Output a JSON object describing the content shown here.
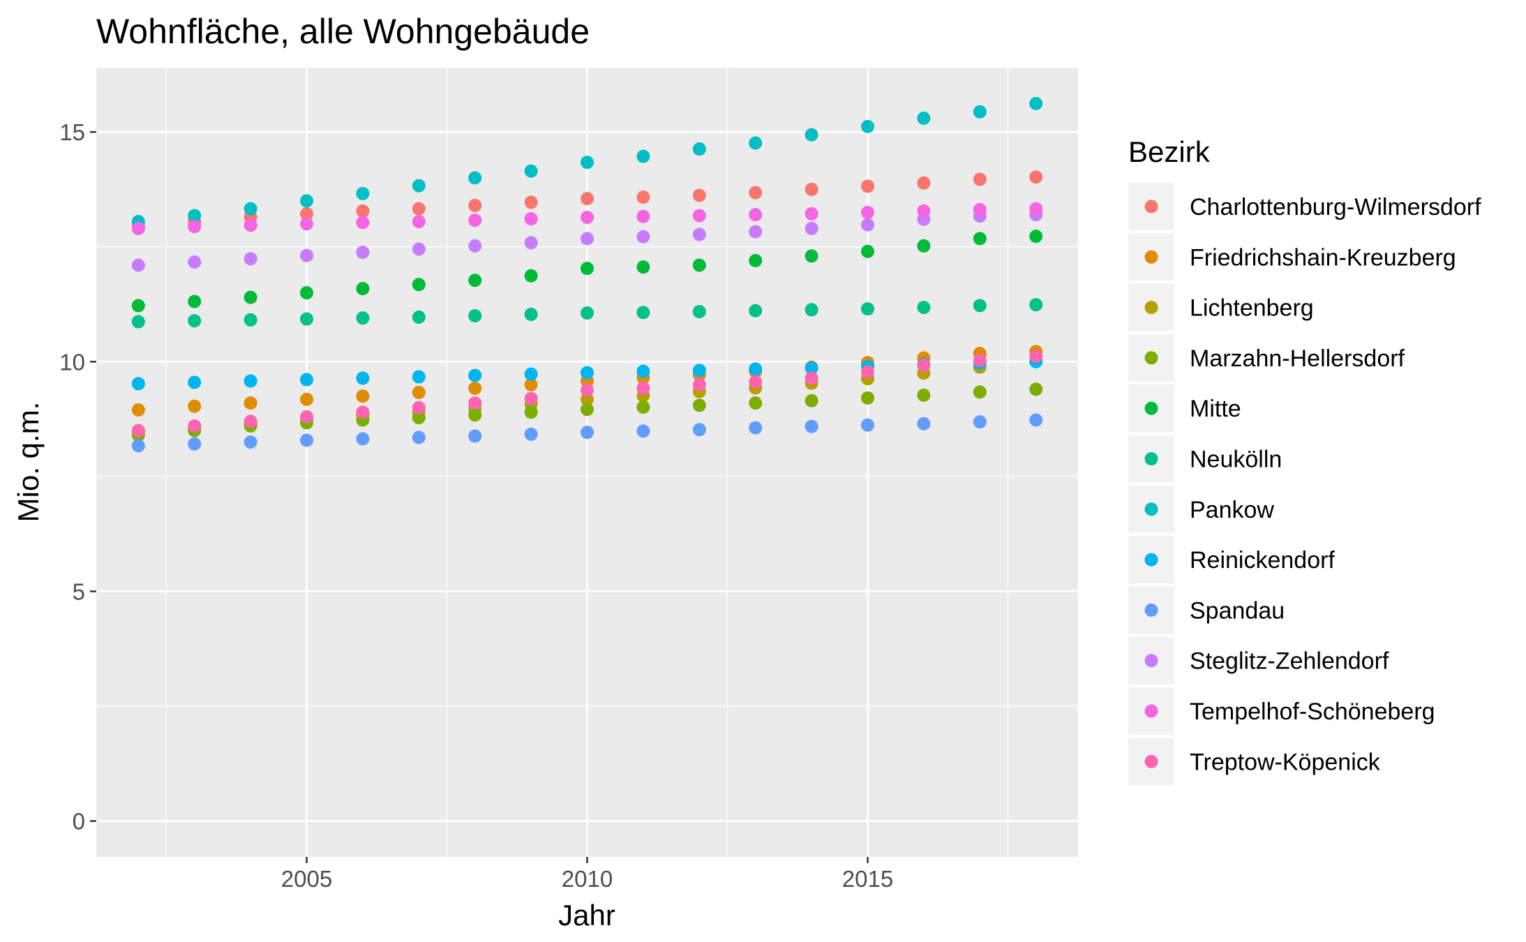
{
  "chart_data": {
    "type": "scatter",
    "title": "Wohnfläche, alle Wohngebäude",
    "xlabel": "Jahr",
    "ylabel": "Mio. q.m.",
    "x": [
      2002,
      2003,
      2004,
      2005,
      2006,
      2007,
      2008,
      2009,
      2010,
      2011,
      2012,
      2013,
      2014,
      2015,
      2016,
      2017,
      2018
    ],
    "xlim": [
      2001.25,
      2018.75
    ],
    "ylim": [
      -0.78,
      16.4
    ],
    "x_ticks": [
      {
        "value": 2005,
        "label": "2005"
      },
      {
        "value": 2010,
        "label": "2010"
      },
      {
        "value": 2015,
        "label": "2015"
      }
    ],
    "y_ticks": [
      {
        "value": 0,
        "label": "0"
      },
      {
        "value": 5,
        "label": "5"
      },
      {
        "value": 10,
        "label": "10"
      },
      {
        "value": 15,
        "label": "15"
      }
    ],
    "grid": true,
    "legend": {
      "title": "Bezirk",
      "position": "right"
    },
    "series": [
      {
        "name": "Charlottenburg-Wilmersdorf",
        "color": "#F8766D",
        "values": [
          12.95,
          13.05,
          13.15,
          13.22,
          13.28,
          13.33,
          13.4,
          13.47,
          13.55,
          13.58,
          13.62,
          13.68,
          13.75,
          13.82,
          13.89,
          13.97,
          14.02
        ]
      },
      {
        "name": "Friedrichshain-Kreuzberg",
        "color": "#DE8C00",
        "values": [
          8.95,
          9.03,
          9.1,
          9.18,
          9.25,
          9.33,
          9.42,
          9.5,
          9.58,
          9.65,
          9.72,
          9.79,
          9.88,
          9.98,
          10.08,
          10.18,
          10.22
        ]
      },
      {
        "name": "Lichtenberg",
        "color": "#B79F00",
        "values": [
          8.45,
          8.55,
          8.65,
          8.73,
          8.83,
          8.9,
          8.98,
          9.08,
          9.18,
          9.26,
          9.35,
          9.43,
          9.53,
          9.63,
          9.75,
          9.88,
          10.0
        ]
      },
      {
        "name": "Marzahn-Hellersdorf",
        "color": "#7CAE00",
        "values": [
          8.4,
          8.5,
          8.6,
          8.67,
          8.73,
          8.78,
          8.84,
          8.9,
          8.96,
          9.01,
          9.05,
          9.1,
          9.15,
          9.21,
          9.27,
          9.34,
          9.4
        ]
      },
      {
        "name": "Mitte",
        "color": "#00BA38",
        "values": [
          11.22,
          11.31,
          11.4,
          11.5,
          11.59,
          11.68,
          11.77,
          11.87,
          12.03,
          12.06,
          12.1,
          12.2,
          12.3,
          12.4,
          12.52,
          12.68,
          12.73
        ]
      },
      {
        "name": "Neukölln",
        "color": "#00C08B",
        "values": [
          10.87,
          10.89,
          10.91,
          10.93,
          10.95,
          10.97,
          11.0,
          11.03,
          11.06,
          11.07,
          11.09,
          11.11,
          11.13,
          11.15,
          11.18,
          11.22,
          11.24
        ]
      },
      {
        "name": "Pankow",
        "color": "#00BFC4",
        "values": [
          13.05,
          13.18,
          13.33,
          13.5,
          13.66,
          13.83,
          14.0,
          14.15,
          14.34,
          14.47,
          14.63,
          14.76,
          14.94,
          15.12,
          15.3,
          15.44,
          15.62
        ]
      },
      {
        "name": "Reinickendorf",
        "color": "#00B4F0",
        "values": [
          9.52,
          9.55,
          9.58,
          9.61,
          9.64,
          9.67,
          9.7,
          9.73,
          9.76,
          9.79,
          9.81,
          9.84,
          9.86,
          9.9,
          9.94,
          9.97,
          10.0
        ]
      },
      {
        "name": "Spandau",
        "color": "#619CFF",
        "values": [
          8.17,
          8.21,
          8.25,
          8.29,
          8.32,
          8.35,
          8.38,
          8.42,
          8.46,
          8.49,
          8.52,
          8.56,
          8.59,
          8.62,
          8.65,
          8.69,
          8.73
        ]
      },
      {
        "name": "Steglitz-Zehlendorf",
        "color": "#C77CFF",
        "values": [
          12.1,
          12.17,
          12.24,
          12.31,
          12.38,
          12.45,
          12.52,
          12.59,
          12.68,
          12.72,
          12.77,
          12.83,
          12.9,
          12.98,
          13.1,
          13.17,
          13.2
        ]
      },
      {
        "name": "Tempelhof-Schöneberg",
        "color": "#F564E3",
        "values": [
          12.9,
          12.94,
          12.97,
          13.0,
          13.03,
          13.05,
          13.08,
          13.11,
          13.14,
          13.16,
          13.18,
          13.2,
          13.22,
          13.25,
          13.28,
          13.31,
          13.33
        ]
      },
      {
        "name": "Treptow-Köpenick",
        "color": "#FF64B0",
        "values": [
          8.5,
          8.6,
          8.7,
          8.8,
          8.9,
          9.0,
          9.1,
          9.2,
          9.38,
          9.42,
          9.5,
          9.56,
          9.64,
          9.78,
          9.92,
          10.03,
          10.12
        ]
      }
    ]
  }
}
